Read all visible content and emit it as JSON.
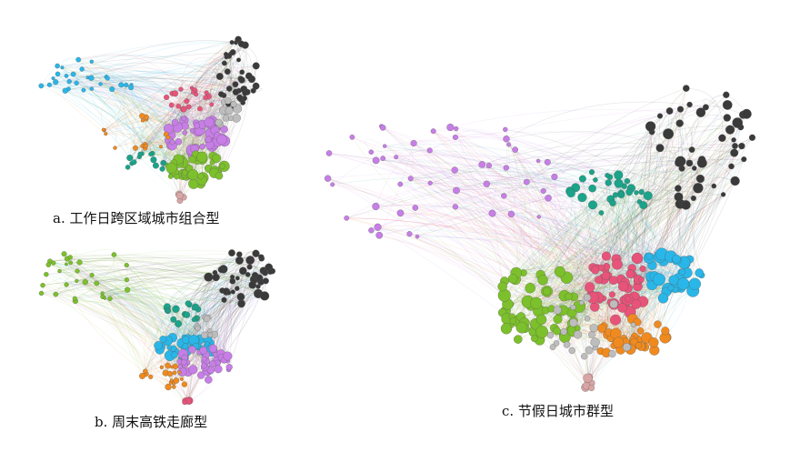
{
  "panels": [
    {
      "id": "a",
      "caption": "a. 工作日跨区域城市组合型",
      "communities": [
        {
          "color": "#3a3a3a"
        },
        {
          "color": "#29b6e8"
        },
        {
          "color": "#c77ee6"
        },
        {
          "color": "#e8537a"
        },
        {
          "color": "#7cc02b"
        },
        {
          "color": "#1aa48a"
        },
        {
          "color": "#f08a1f"
        },
        {
          "color": "#bdbdbd"
        },
        {
          "color": "#d9a5a5"
        }
      ]
    },
    {
      "id": "b",
      "caption": "b. 周末高铁走廊型",
      "communities": [
        {
          "color": "#3a3a3a"
        },
        {
          "color": "#7cc02b"
        },
        {
          "color": "#29b6e8"
        },
        {
          "color": "#c77ee6"
        },
        {
          "color": "#f08a1f"
        },
        {
          "color": "#1aa48a"
        },
        {
          "color": "#e8537a"
        },
        {
          "color": "#bdbdbd"
        }
      ]
    },
    {
      "id": "c",
      "caption": "c. 节假日城市群型",
      "communities": [
        {
          "color": "#3a3a3a"
        },
        {
          "color": "#c77ee6"
        },
        {
          "color": "#1aa48a"
        },
        {
          "color": "#7cc02b"
        },
        {
          "color": "#e8537a"
        },
        {
          "color": "#29b6e8"
        },
        {
          "color": "#f08a1f"
        },
        {
          "color": "#bdbdbd"
        },
        {
          "color": "#d9a5a5"
        }
      ]
    }
  ]
}
